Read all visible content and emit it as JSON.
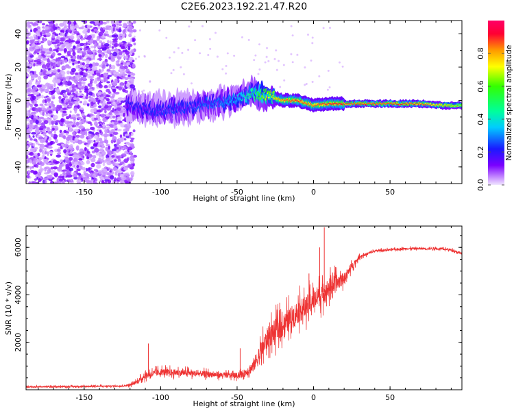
{
  "title": "C2E6.2023.192.21.47.R20",
  "chart_data": [
    {
      "type": "heatmap",
      "xlabel": "Height of straight line (km)",
      "ylabel": "Frequency (Hz)",
      "xlim": [
        -188,
        97
      ],
      "ylim": [
        -50,
        48
      ],
      "x_ticks": [
        -150,
        -100,
        -50,
        0,
        50
      ],
      "y_ticks": [
        -40,
        -20,
        0,
        20,
        40
      ],
      "colorbar": {
        "label": "Normalized spectral amplitude",
        "range": [
          0,
          1
        ],
        "ticks": [
          "0.0",
          "0.2",
          "0.4",
          "0.6",
          "0.8"
        ],
        "tick_values": [
          0.0,
          0.2,
          0.4,
          0.6,
          0.8
        ],
        "colormap": "gist_rainbow_r"
      },
      "ridge": {
        "x": [
          -120,
          -110,
          -100,
          -90,
          -80,
          -70,
          -60,
          -50,
          -40,
          -30,
          -20,
          -10,
          0,
          10,
          30,
          50,
          70,
          85,
          97
        ],
        "y": [
          -3,
          -5,
          -6,
          -5,
          -4,
          -2,
          -1,
          1,
          4,
          3,
          0,
          0,
          -3,
          -2,
          -2,
          -2,
          -2,
          -3,
          -3
        ],
        "amplitude": [
          0.2,
          0.22,
          0.25,
          0.25,
          0.25,
          0.28,
          0.3,
          0.35,
          0.5,
          0.7,
          0.85,
          0.9,
          0.85,
          0.9,
          0.95,
          0.95,
          0.92,
          0.8,
          0.7
        ]
      },
      "noise_region_x": [
        -188,
        -120
      ]
    },
    {
      "type": "line",
      "xlabel": "Height of straight line (km)",
      "ylabel": "SNR (10 * v/v)",
      "xlim": [
        -188,
        97
      ],
      "ylim": [
        0,
        6900
      ],
      "x_ticks": [
        -150,
        -100,
        -50,
        0,
        50
      ],
      "y_ticks": [
        2000,
        4000,
        6000
      ],
      "line_color": "#ee3333",
      "envelope": {
        "x": [
          -188,
          -150,
          -125,
          -120,
          -115,
          -110,
          -100,
          -80,
          -60,
          -50,
          -45,
          -40,
          -35,
          -30,
          -25,
          -20,
          -15,
          -10,
          -5,
          0,
          5,
          10,
          15,
          20,
          25,
          30,
          40,
          50,
          60,
          70,
          80,
          90,
          97
        ],
        "y": [
          120,
          140,
          160,
          200,
          350,
          600,
          750,
          700,
          620,
          600,
          700,
          950,
          1500,
          2200,
          2500,
          2700,
          3000,
          3300,
          3500,
          3800,
          4000,
          4300,
          4500,
          4700,
          5200,
          5600,
          5850,
          5900,
          5950,
          5950,
          5950,
          5900,
          5750
        ],
        "noise": [
          60,
          70,
          70,
          100,
          200,
          300,
          320,
          280,
          260,
          250,
          350,
          550,
          900,
          1000,
          1100,
          1100,
          1100,
          1100,
          1000,
          1000,
          1000,
          900,
          800,
          500,
          300,
          150,
          100,
          100,
          100,
          100,
          100,
          100,
          120
        ]
      },
      "spikes": [
        {
          "x": 7,
          "y": 6850
        },
        {
          "x": 4,
          "y": 6000
        },
        {
          "x": -3,
          "y": 4900
        },
        {
          "x": -108,
          "y": 1950
        },
        {
          "x": -48,
          "y": 1750
        }
      ]
    }
  ]
}
